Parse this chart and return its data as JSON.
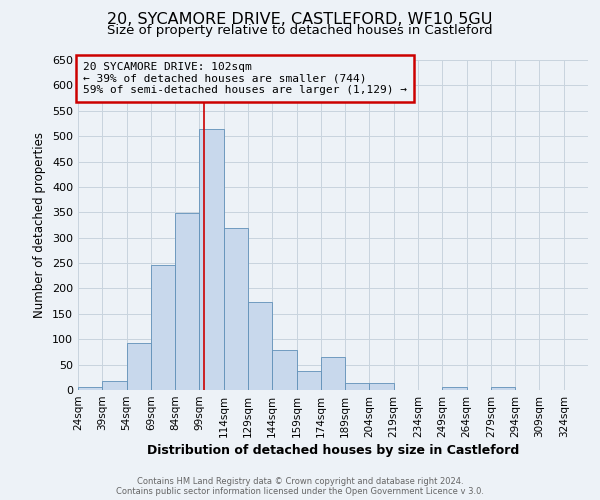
{
  "title": "20, SYCAMORE DRIVE, CASTLEFORD, WF10 5GU",
  "subtitle": "Size of property relative to detached houses in Castleford",
  "xlabel": "Distribution of detached houses by size in Castleford",
  "ylabel": "Number of detached properties",
  "annotation_line1": "20 SYCAMORE DRIVE: 102sqm",
  "annotation_line2": "← 39% of detached houses are smaller (744)",
  "annotation_line3": "59% of semi-detached houses are larger (1,129) →",
  "footer_line1": "Contains HM Land Registry data © Crown copyright and database right 2024.",
  "footer_line2": "Contains public sector information licensed under the Open Government Licence v 3.0.",
  "bar_values": [
    5,
    18,
    92,
    246,
    348,
    514,
    320,
    173,
    78,
    38,
    65,
    13,
    13,
    0,
    0,
    5,
    0,
    5,
    0,
    0
  ],
  "bin_edges": [
    24,
    39,
    54,
    69,
    84,
    99,
    114,
    129,
    144,
    159,
    174,
    189,
    204,
    219,
    234,
    249,
    264,
    279,
    294,
    309,
    324
  ],
  "bin_labels": [
    "24sqm",
    "39sqm",
    "54sqm",
    "69sqm",
    "84sqm",
    "99sqm",
    "114sqm",
    "129sqm",
    "144sqm",
    "159sqm",
    "174sqm",
    "189sqm",
    "204sqm",
    "219sqm",
    "234sqm",
    "249sqm",
    "264sqm",
    "279sqm",
    "294sqm",
    "309sqm",
    "324sqm"
  ],
  "bar_color": "#c8d8ec",
  "bar_edge_color": "#6090b8",
  "property_size": 102,
  "vline_color": "#cc0000",
  "annotation_box_color": "#cc0000",
  "ylim": [
    0,
    650
  ],
  "yticks": [
    0,
    50,
    100,
    150,
    200,
    250,
    300,
    350,
    400,
    450,
    500,
    550,
    600,
    650
  ],
  "grid_color": "#c8d4de",
  "background_color": "#edf2f7",
  "title_fontsize": 11.5,
  "subtitle_fontsize": 9.5,
  "xlabel_fontsize": 9,
  "ylabel_fontsize": 8.5
}
